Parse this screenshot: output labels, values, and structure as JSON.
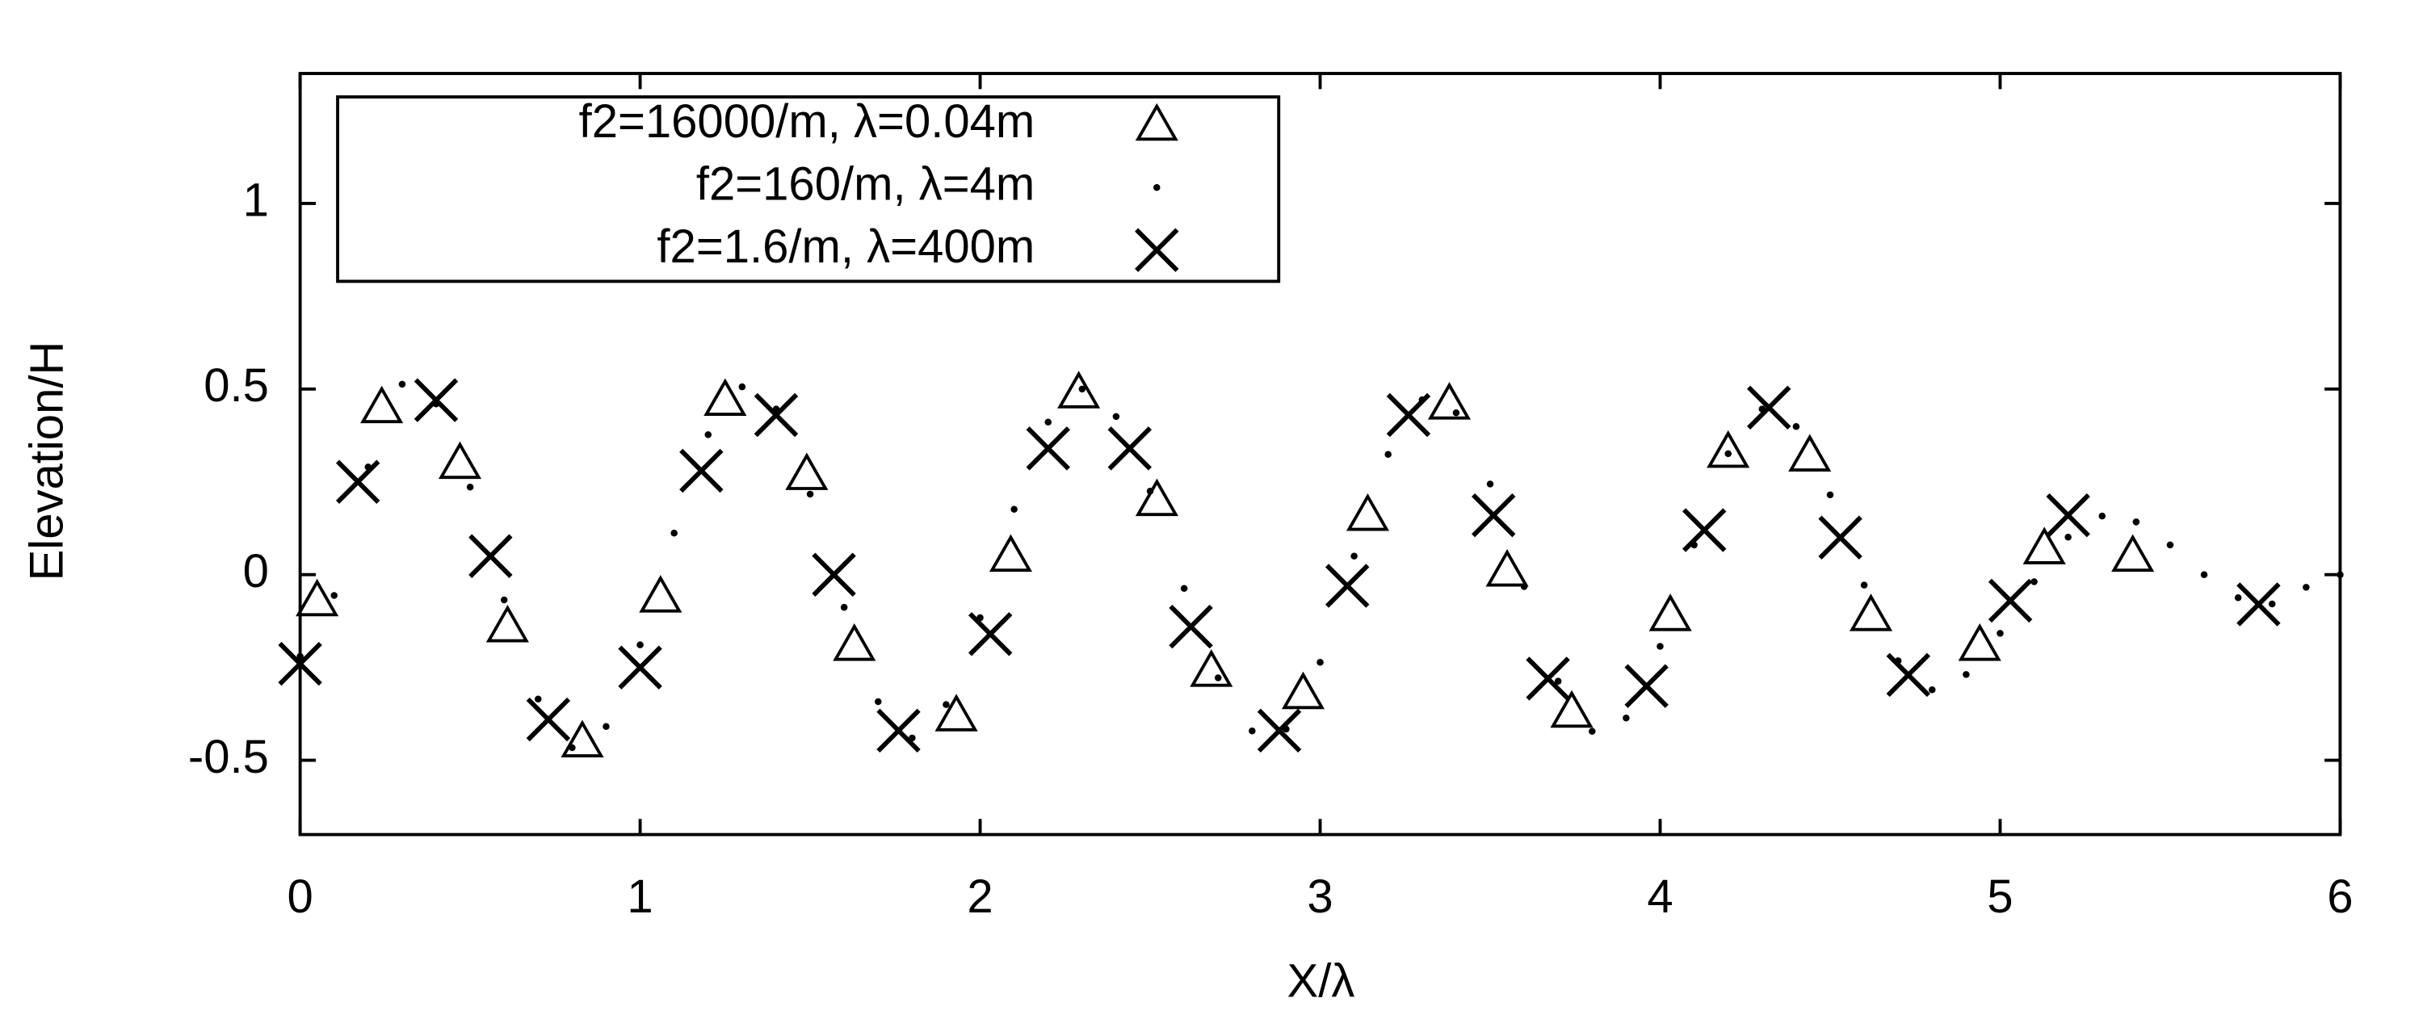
{
  "chart_data": {
    "type": "scatter",
    "xlabel": "X/λ",
    "ylabel": "Elevation/H",
    "xlim": [
      0,
      6
    ],
    "ylim": [
      -0.7,
      1.35
    ],
    "xticks": [
      0,
      1,
      2,
      3,
      4,
      5,
      6
    ],
    "yticks": [
      -0.5,
      0,
      0.5,
      1
    ],
    "legend_position": "upper left",
    "series": [
      {
        "name": "f2=16000/m, λ=0.04m",
        "color": "#000000",
        "marker": "triangle",
        "x": [
          0.05,
          0.24,
          0.47,
          0.61,
          0.83,
          1.06,
          1.25,
          1.49,
          1.63,
          1.93,
          2.09,
          2.29,
          2.52,
          2.68,
          2.95,
          3.14,
          3.38,
          3.55,
          3.74,
          4.03,
          4.2,
          4.44,
          4.62,
          4.94,
          5.13,
          5.39
        ],
        "y": [
          -0.07,
          0.45,
          0.3,
          -0.14,
          -0.45,
          -0.06,
          0.47,
          0.27,
          -0.19,
          -0.38,
          0.05,
          0.49,
          0.2,
          -0.26,
          -0.32,
          0.16,
          0.46,
          0.01,
          -0.37,
          -0.11,
          0.33,
          0.32,
          -0.11,
          -0.19,
          0.07,
          0.05
        ]
      },
      {
        "name": "f2=160/m, λ=4m",
        "color": "#000000",
        "marker": "dot",
        "x": [
          0,
          0.1,
          0.2,
          0.3,
          0.4,
          0.5,
          0.6,
          0.7,
          0.8,
          0.9,
          1,
          1.1,
          1.2,
          1.3,
          1.4,
          1.5,
          1.6,
          1.7,
          1.8,
          1.9,
          2,
          2.1,
          2.2,
          2.3,
          2.4,
          2.5,
          2.6,
          2.7,
          2.8,
          2.9,
          3,
          3.1,
          3.2,
          3.3,
          3.4,
          3.5,
          3.6,
          3.7,
          3.8,
          3.9,
          4,
          4.1,
          4.2,
          4.3,
          4.4,
          4.5,
          4.6,
          4.7,
          4.8,
          4.9,
          5,
          5.1,
          5.2,
          5.3,
          5.4,
          5.5,
          5.6,
          5.7,
          5.8,
          5.9,
          6
        ],
        "y": [
          -0.22,
          -0.056,
          0.29,
          0.513,
          0.46,
          0.236,
          -0.068,
          -0.335,
          -0.466,
          -0.409,
          -0.189,
          0.112,
          0.377,
          0.506,
          0.446,
          0.217,
          -0.088,
          -0.342,
          -0.44,
          -0.35,
          -0.116,
          0.176,
          0.411,
          0.5,
          0.426,
          0.225,
          -0.037,
          -0.278,
          -0.421,
          -0.416,
          -0.236,
          0.05,
          0.324,
          0.471,
          0.436,
          0.244,
          -0.032,
          -0.287,
          -0.422,
          -0.386,
          -0.193,
          0.08,
          0.326,
          0.446,
          0.399,
          0.215,
          -0.028,
          -0.232,
          -0.31,
          -0.269,
          -0.158,
          -0.019,
          0.101,
          0.158,
          0.142,
          0.08,
          0.0,
          -0.062,
          -0.079,
          -0.034,
          0.0
        ]
      },
      {
        "name": "f2=1.6/m, λ=400m",
        "color": "#000000",
        "marker": "cross",
        "x": [
          0.0,
          0.17,
          0.4,
          0.56,
          0.73,
          1.0,
          1.18,
          1.4,
          1.57,
          1.76,
          2.03,
          2.2,
          2.44,
          2.62,
          2.88,
          3.08,
          3.26,
          3.51,
          3.67,
          3.96,
          4.13,
          4.32,
          4.53,
          4.73,
          5.03,
          5.2,
          5.76
        ],
        "y": [
          -0.24,
          0.25,
          0.47,
          0.05,
          -0.39,
          -0.25,
          0.28,
          0.43,
          0.0,
          -0.42,
          -0.16,
          0.34,
          0.34,
          -0.14,
          -0.42,
          -0.03,
          0.43,
          0.16,
          -0.28,
          -0.3,
          0.12,
          0.45,
          0.1,
          -0.27,
          -0.07,
          0.16,
          -0.08
        ]
      }
    ]
  }
}
